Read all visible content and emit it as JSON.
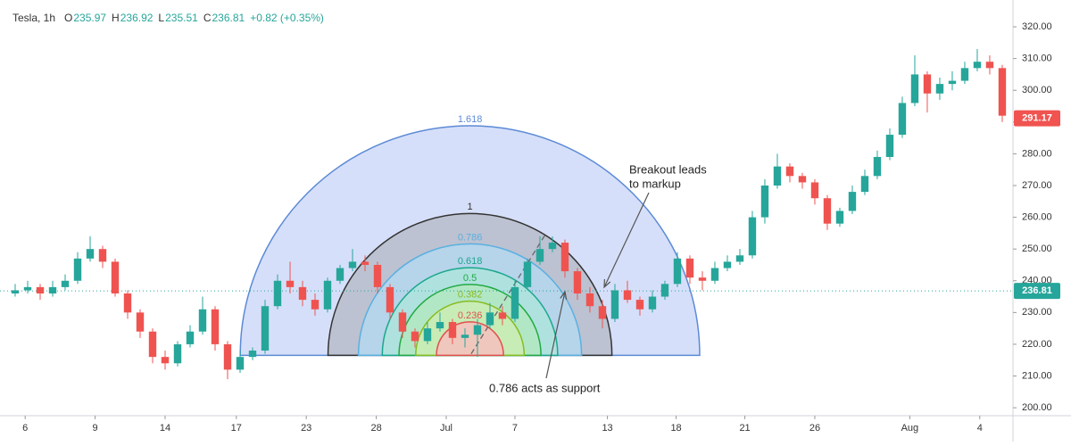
{
  "chart_data": {
    "type": "candlestick",
    "symbol": "Tesla, 1h",
    "ohlc_header": [
      {
        "label": "O",
        "value": 235.97
      },
      {
        "label": "H",
        "value": 236.92
      },
      {
        "label": "L",
        "value": 235.51
      },
      {
        "label": "C",
        "value": 236.81
      }
    ],
    "change_label": "+0.82 (+0.35%)",
    "up_color": "#26a69a",
    "down_color": "#ef5350",
    "open": [
      236,
      237,
      238,
      236,
      238,
      240,
      247,
      250,
      246,
      236,
      230,
      224,
      216,
      214,
      220,
      224,
      231,
      220,
      212,
      216,
      218,
      232,
      240,
      238,
      234,
      231,
      240,
      244,
      246,
      245,
      238,
      230,
      224,
      221,
      225,
      227,
      222,
      223,
      226,
      230,
      228,
      238,
      246,
      250,
      252,
      243,
      236,
      232,
      228,
      237,
      234,
      231,
      235,
      239,
      247,
      241,
      240,
      244,
      246,
      248,
      260,
      270,
      276,
      273,
      271,
      266,
      258,
      262,
      268,
      273,
      279,
      286,
      296,
      305,
      299,
      302,
      303,
      307,
      309,
      307
    ],
    "high": [
      239,
      240,
      239,
      240,
      242,
      249,
      254,
      251,
      247,
      237,
      231,
      225,
      218,
      221,
      226,
      235,
      232,
      221,
      218,
      219,
      234,
      242,
      246,
      240,
      236,
      241,
      245,
      250,
      248,
      246,
      239,
      231,
      225,
      227,
      230,
      228,
      225,
      228,
      233,
      232,
      240,
      247,
      254,
      254,
      253,
      244,
      238,
      234,
      239,
      240,
      235,
      237,
      240,
      249,
      248,
      243,
      246,
      248,
      250,
      262,
      272,
      280,
      277,
      274,
      272,
      267,
      263,
      270,
      275,
      281,
      288,
      298,
      311,
      306,
      304,
      306,
      309,
      313,
      311,
      308
    ],
    "low": [
      235,
      236,
      234,
      235,
      237,
      239,
      246,
      244,
      235,
      228,
      222,
      214,
      212,
      213,
      219,
      223,
      218,
      209,
      211,
      215,
      217,
      231,
      236,
      232,
      229,
      230,
      239,
      243,
      243,
      236,
      228,
      222,
      219,
      220,
      224,
      220,
      219,
      216,
      225,
      226,
      227,
      237,
      245,
      249,
      241,
      234,
      230,
      225,
      227,
      233,
      229,
      230,
      234,
      238,
      239,
      237,
      239,
      243,
      245,
      247,
      258,
      269,
      271,
      269,
      264,
      256,
      257,
      261,
      267,
      272,
      278,
      285,
      295,
      293,
      297,
      300,
      302,
      306,
      305,
      290
    ],
    "close": [
      237,
      238,
      236,
      238,
      240,
      247,
      250,
      246,
      236,
      230,
      224,
      216,
      214,
      220,
      224,
      231,
      220,
      212,
      216,
      218,
      232,
      240,
      238,
      234,
      231,
      240,
      244,
      246,
      245,
      238,
      230,
      224,
      221,
      225,
      227,
      222,
      223,
      226,
      230,
      228,
      238,
      246,
      250,
      252,
      243,
      236,
      232,
      228,
      237,
      234,
      231,
      235,
      239,
      247,
      241,
      240,
      244,
      246,
      248,
      260,
      270,
      276,
      273,
      271,
      266,
      258,
      262,
      268,
      273,
      279,
      286,
      296,
      305,
      299,
      302,
      303,
      307,
      309,
      307,
      292
    ],
    "xlim": [
      -0.5,
      79.86
    ],
    "xticks": [
      {
        "value": 0.8,
        "label": "6"
      },
      {
        "value": 6.4,
        "label": "9"
      },
      {
        "value": 12,
        "label": "14"
      },
      {
        "value": 17.7,
        "label": "17"
      },
      {
        "value": 23.3,
        "label": "23"
      },
      {
        "value": 28.9,
        "label": "28"
      },
      {
        "value": 34.5,
        "label": "Jul"
      },
      {
        "value": 40,
        "label": "7"
      },
      {
        "value": 47.4,
        "label": "13"
      },
      {
        "value": 52.9,
        "label": "18"
      },
      {
        "value": 58.4,
        "label": "21"
      },
      {
        "value": 64,
        "label": "26"
      },
      {
        "value": 71.6,
        "label": "Aug"
      },
      {
        "value": 77.2,
        "label": "4"
      }
    ],
    "ylim": [
      197.5,
      326.2
    ],
    "yticks": [
      {
        "value": 200,
        "label": "200.00"
      },
      {
        "value": 210,
        "label": "210.00"
      },
      {
        "value": 220,
        "label": "220.00"
      },
      {
        "value": 230,
        "label": "230.00"
      },
      {
        "value": 240,
        "label": "240.00"
      },
      {
        "value": 250,
        "label": "250.00"
      },
      {
        "value": 260,
        "label": "260.00"
      },
      {
        "value": 270,
        "label": "270.00"
      },
      {
        "value": 280,
        "label": "280.00"
      },
      {
        "value": 290,
        "label": "290.00"
      },
      {
        "value": 300,
        "label": "300.00"
      },
      {
        "value": 310,
        "label": "310.00"
      },
      {
        "value": 320,
        "label": "320.00"
      }
    ],
    "price_tags": [
      {
        "value": 291.17,
        "color": "#f05350"
      },
      {
        "value": 236.81,
        "color": "#26a69a"
      }
    ],
    "fib_arcs": {
      "center_x": 36.4,
      "center_y": 216.5,
      "radius": 44.7,
      "levels": [
        1.618,
        1,
        0.786,
        0.618,
        0.5,
        0.382,
        0.236
      ],
      "colors": [
        "#5b8ad6",
        "#333333",
        "#5ab0e0",
        "#1aa88c",
        "#22aa44",
        "#88bb22",
        "#e05050"
      ],
      "fills": [
        "rgba(120,150,235,0.3)",
        "rgba(150,150,150,0.4)",
        "rgba(180,220,245,0.7)",
        "rgba(170,235,215,0.6)",
        "rgba(180,235,180,0.6)",
        "rgba(215,240,170,0.6)",
        "rgba(250,190,190,0.8)"
      ]
    },
    "trend_line": {
      "x": [
        36.5,
        42.5
      ],
      "y": [
        217,
        255
      ]
    },
    "annotations": [
      {
        "lines": [
          "Breakout leads",
          "to markup"
        ]
      },
      {
        "lines": [
          "0.786 acts as support"
        ]
      }
    ]
  }
}
